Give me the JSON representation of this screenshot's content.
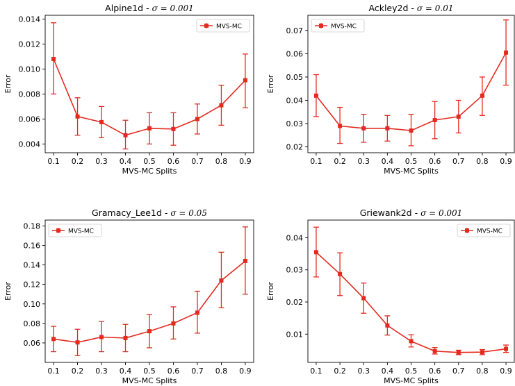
{
  "figure": {
    "line_color": "#e32a1f"
  },
  "chart_data": [
    {
      "type": "line",
      "title": "Alpine1d",
      "title_suffix": "σ = 0.001",
      "xlabel": "MVS-MC Splits",
      "ylabel": "Error",
      "x": [
        0.1,
        0.2,
        0.3,
        0.4,
        0.5,
        0.6,
        0.7,
        0.8,
        0.9
      ],
      "xticks": [
        "0.1",
        "0.2",
        "0.3",
        "0.4",
        "0.5",
        "0.6",
        "0.7",
        "0.8",
        "0.9"
      ],
      "yticks": [
        "0.004",
        "0.006",
        "0.008",
        "0.010",
        "0.012",
        "0.014"
      ],
      "ytick_values": [
        0.004,
        0.006,
        0.008,
        0.01,
        0.012,
        0.014
      ],
      "xlim": [
        0.065,
        0.935
      ],
      "ylim": [
        0.0033,
        0.0143
      ],
      "legend_position": "top-right",
      "grid": false,
      "series": [
        {
          "name": "MVS-MC",
          "values": [
            0.0108,
            0.0062,
            0.00575,
            0.0047,
            0.00525,
            0.0052,
            0.006,
            0.0071,
            0.0091
          ],
          "err_low": [
            0.008,
            0.0047,
            0.0045,
            0.0036,
            0.004,
            0.0039,
            0.0048,
            0.0055,
            0.0069
          ],
          "err_high": [
            0.0137,
            0.0077,
            0.007,
            0.0059,
            0.0065,
            0.0065,
            0.0072,
            0.0087,
            0.0112
          ]
        }
      ]
    },
    {
      "type": "line",
      "title": "Ackley2d",
      "title_suffix": "σ = 0.01",
      "xlabel": "MVS-MC Splits",
      "ylabel": "Error",
      "x": [
        0.1,
        0.2,
        0.3,
        0.4,
        0.5,
        0.6,
        0.7,
        0.8,
        0.9
      ],
      "xticks": [
        "0.1",
        "0.2",
        "0.3",
        "0.4",
        "0.5",
        "0.6",
        "0.7",
        "0.8",
        "0.9"
      ],
      "yticks": [
        "0.02",
        "0.03",
        "0.04",
        "0.05",
        "0.06",
        "0.07"
      ],
      "ytick_values": [
        0.02,
        0.03,
        0.04,
        0.05,
        0.06,
        0.07
      ],
      "xlim": [
        0.065,
        0.935
      ],
      "ylim": [
        0.0175,
        0.0765
      ],
      "legend_position": "top-left",
      "grid": false,
      "series": [
        {
          "name": "MVS-MC",
          "values": [
            0.042,
            0.029,
            0.028,
            0.028,
            0.027,
            0.0315,
            0.033,
            0.042,
            0.0605
          ],
          "err_low": [
            0.033,
            0.0215,
            0.022,
            0.0225,
            0.0205,
            0.0235,
            0.026,
            0.0335,
            0.0465
          ],
          "err_high": [
            0.051,
            0.037,
            0.034,
            0.0335,
            0.034,
            0.0395,
            0.04,
            0.05,
            0.0745
          ]
        }
      ]
    },
    {
      "type": "line",
      "title": "Gramacy_Lee1d",
      "title_suffix": "σ = 0.05",
      "xlabel": "MVS-MC Splits",
      "ylabel": "Error",
      "x": [
        0.1,
        0.2,
        0.3,
        0.4,
        0.5,
        0.6,
        0.7,
        0.8,
        0.9
      ],
      "xticks": [
        "0.1",
        "0.2",
        "0.3",
        "0.4",
        "0.5",
        "0.6",
        "0.7",
        "0.8",
        "0.9"
      ],
      "yticks": [
        "0.06",
        "0.08",
        "0.10",
        "0.12",
        "0.14",
        "0.16",
        "0.18"
      ],
      "ytick_values": [
        0.06,
        0.08,
        0.1,
        0.12,
        0.14,
        0.16,
        0.18
      ],
      "xlim": [
        0.065,
        0.935
      ],
      "ylim": [
        0.04,
        0.186
      ],
      "legend_position": "top-left",
      "grid": false,
      "series": [
        {
          "name": "MVS-MC",
          "values": [
            0.064,
            0.0605,
            0.066,
            0.065,
            0.072,
            0.08,
            0.091,
            0.124,
            0.144
          ],
          "err_low": [
            0.051,
            0.047,
            0.051,
            0.051,
            0.055,
            0.064,
            0.07,
            0.096,
            0.11
          ],
          "err_high": [
            0.077,
            0.074,
            0.082,
            0.079,
            0.089,
            0.097,
            0.113,
            0.153,
            0.179
          ]
        }
      ]
    },
    {
      "type": "line",
      "title": "Griewank2d",
      "title_suffix": "σ = 0.001",
      "xlabel": "MVS-MC Splits",
      "ylabel": "Error",
      "x": [
        0.1,
        0.2,
        0.3,
        0.4,
        0.5,
        0.6,
        0.7,
        0.8,
        0.9
      ],
      "xticks": [
        "0.1",
        "0.2",
        "0.3",
        "0.4",
        "0.5",
        "0.6",
        "0.7",
        "0.8",
        "0.9"
      ],
      "yticks": [
        "0.01",
        "0.02",
        "0.03",
        "0.04"
      ],
      "ytick_values": [
        0.01,
        0.02,
        0.03,
        0.04
      ],
      "xlim": [
        0.065,
        0.935
      ],
      "ylim": [
        0.0012,
        0.0455
      ],
      "legend_position": "top-right",
      "grid": false,
      "series": [
        {
          "name": "MVS-MC",
          "values": [
            0.0355,
            0.0287,
            0.0212,
            0.0127,
            0.0078,
            0.0047,
            0.0043,
            0.0044,
            0.0054
          ],
          "err_low": [
            0.0278,
            0.022,
            0.0165,
            0.0097,
            0.006,
            0.0038,
            0.0036,
            0.0036,
            0.0043
          ],
          "err_high": [
            0.0433,
            0.0353,
            0.0259,
            0.0157,
            0.0098,
            0.0058,
            0.005,
            0.0052,
            0.0066
          ]
        }
      ]
    }
  ]
}
